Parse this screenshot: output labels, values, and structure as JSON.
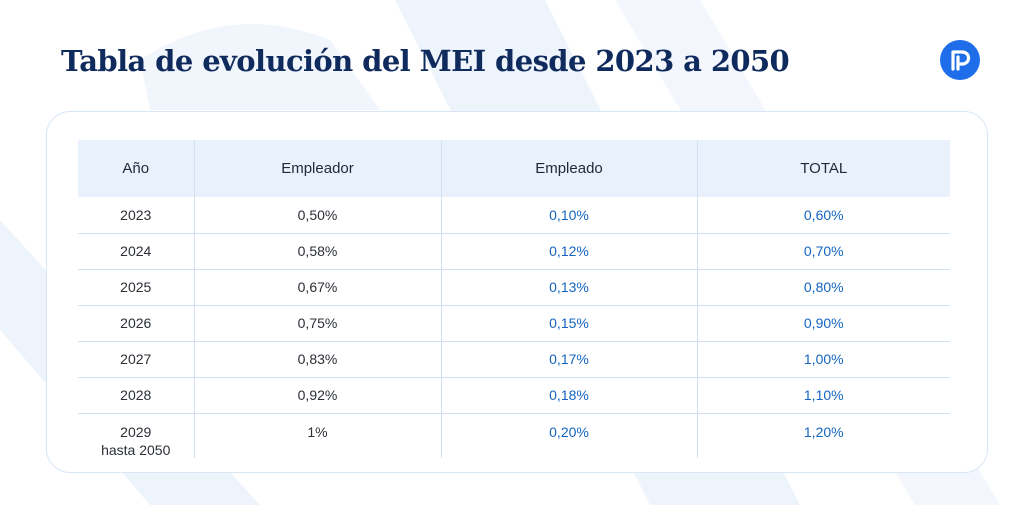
{
  "title": "Tabla de evolución del MEI desde 2023 a 2050",
  "colors": {
    "title": "#0f2a5c",
    "accent_blue": "#1565c0",
    "logo": "#1d6ee8",
    "header_bg": "#e8f1fc"
  },
  "logo_icon": "brand-p-logo-icon",
  "table": {
    "headers": [
      "Año",
      "Empleador",
      "Empleado",
      "TOTAL"
    ],
    "rows": [
      {
        "year": "2023",
        "empleador": "0,50%",
        "empleado": "0,10%",
        "total": "0,60%"
      },
      {
        "year": "2024",
        "empleador": "0,58%",
        "empleado": "0,12%",
        "total": "0,70%"
      },
      {
        "year": "2025",
        "empleador": "0,67%",
        "empleado": "0,13%",
        "total": "0,80%"
      },
      {
        "year": "2026",
        "empleador": "0,75%",
        "empleado": "0,15%",
        "total": "0,90%"
      },
      {
        "year": "2027",
        "empleador": "0,83%",
        "empleado": "0,17%",
        "total": "1,00%"
      },
      {
        "year": "2028",
        "empleador": "0,92%",
        "empleado": "0,18%",
        "total": "1,10%"
      }
    ],
    "last_row": {
      "year": "2029",
      "year_note": "hasta 2050",
      "empleador": "1%",
      "empleado": "0,20%",
      "total": "1,20%"
    }
  }
}
